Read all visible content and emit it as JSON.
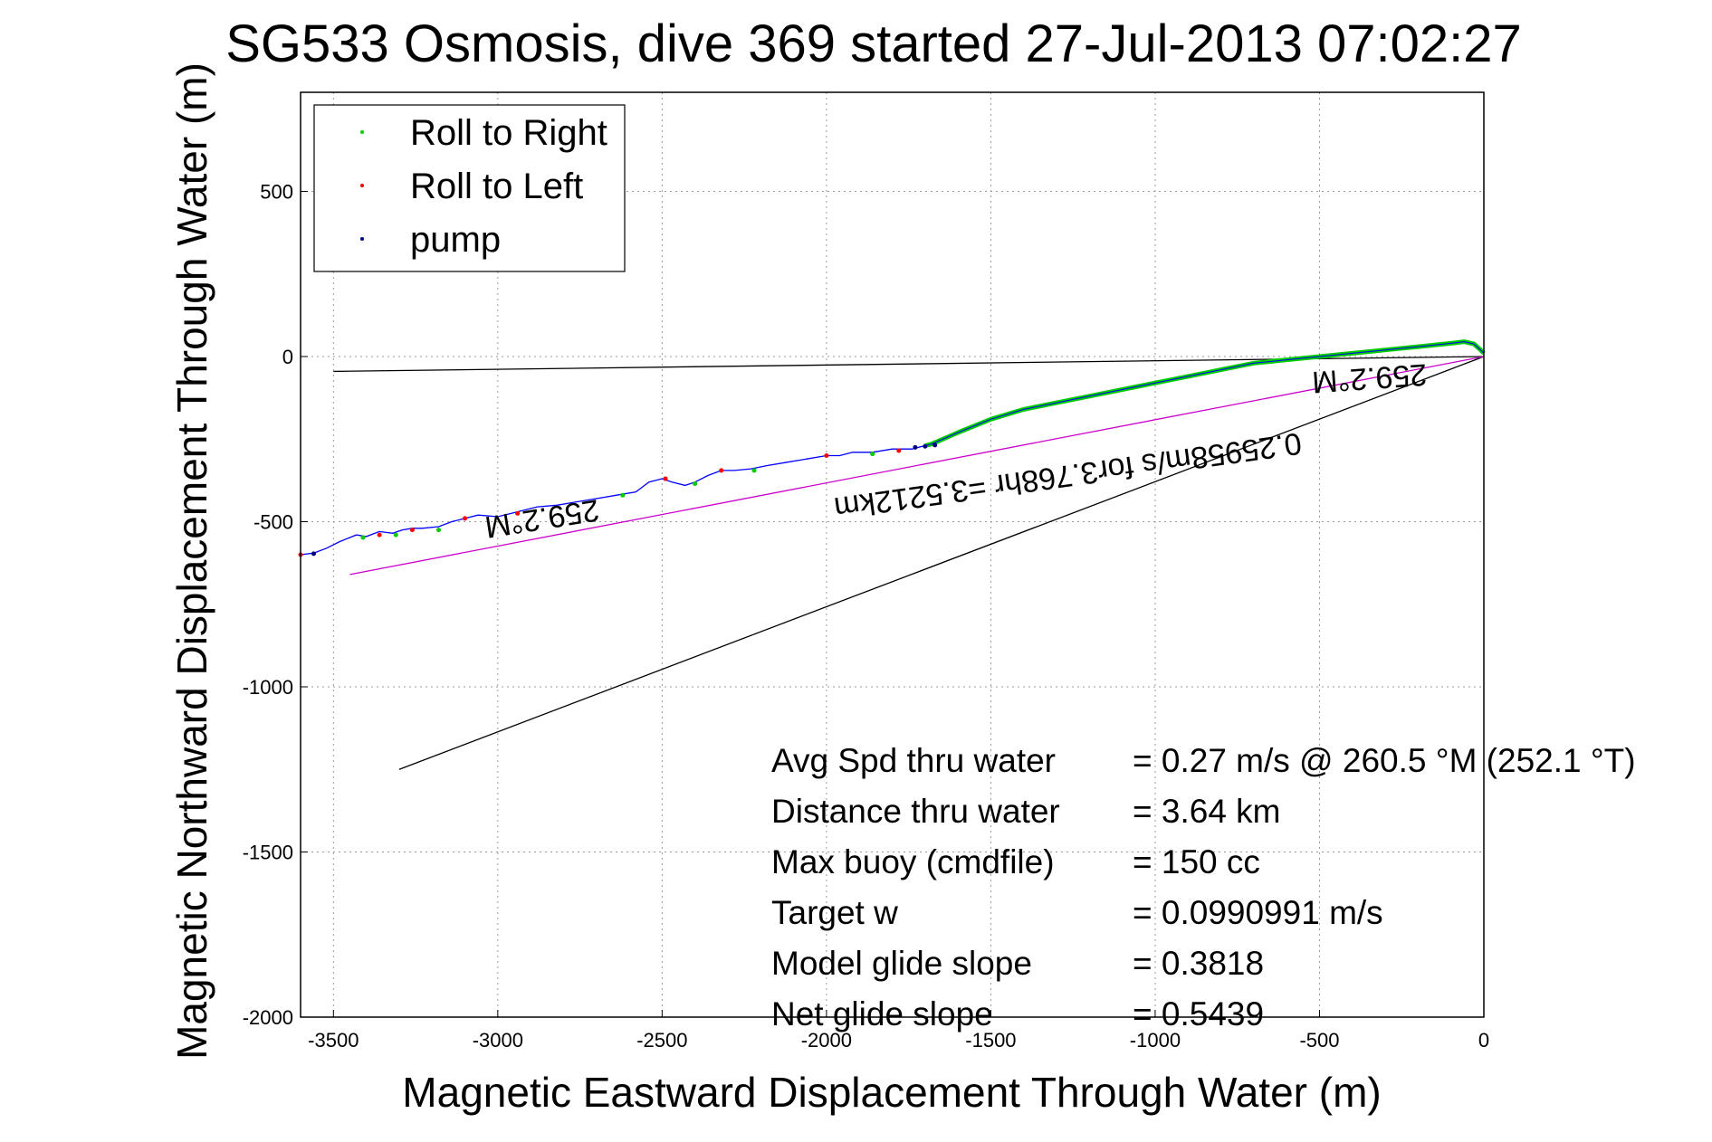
{
  "chart_data": {
    "type": "scatter",
    "title": "SG533 Osmosis, dive 369 started 27-Jul-2013 07:02:27",
    "xlabel": "Magnetic Eastward Displacement Through Water (m)",
    "ylabel": "Magnetic Northward Displacement Through Water (m)",
    "xlim": [
      -3600,
      0
    ],
    "ylim": [
      -2000,
      800
    ],
    "xticks": [
      -3500,
      -3000,
      -2500,
      -2000,
      -1500,
      -1000,
      -500,
      0
    ],
    "yticks": [
      500,
      0,
      -500,
      -1000,
      -1500,
      -2000
    ],
    "grid": true,
    "legend_position": "top-left",
    "legend": [
      {
        "label": "Roll to Right",
        "color": "#00cc00"
      },
      {
        "label": "Roll to Left",
        "color": "#ff0000"
      },
      {
        "label": "pump",
        "color": "#000080"
      }
    ],
    "track": {
      "color": "#0000ff",
      "x": [
        -3600,
        -3560,
        -3520,
        -3480,
        -3430,
        -3400,
        -3360,
        -3320,
        -3290,
        -3260,
        -3230,
        -3180,
        -3140,
        -3100,
        -3060,
        -3000,
        -2940,
        -2880,
        -2820,
        -2760,
        -2700,
        -2640,
        -2580,
        -2540,
        -2500,
        -2470,
        -2430,
        -2400,
        -2360,
        -2320,
        -2280,
        -2230,
        -2180,
        -2120,
        -2060,
        -2000,
        -1960,
        -1920,
        -1860,
        -1800,
        -1740,
        -1700,
        -1680,
        -1600,
        -1500,
        -1400,
        -1300,
        -1200,
        -1100,
        -1000,
        -900,
        -800,
        -700,
        -600,
        -500,
        -400,
        -300,
        -200,
        -100,
        -60,
        -30,
        -10,
        0
      ],
      "y": [
        -600,
        -595,
        -580,
        -560,
        -540,
        -545,
        -530,
        -535,
        -525,
        -520,
        -520,
        -515,
        -500,
        -490,
        -480,
        -485,
        -470,
        -455,
        -450,
        -440,
        -430,
        -420,
        -410,
        -380,
        -370,
        -380,
        -390,
        -380,
        -360,
        -345,
        -345,
        -340,
        -330,
        -320,
        -310,
        -300,
        -300,
        -290,
        -290,
        -280,
        -280,
        -270,
        -265,
        -230,
        -190,
        -160,
        -140,
        -120,
        -100,
        -80,
        -60,
        -40,
        -20,
        -10,
        0,
        10,
        20,
        30,
        40,
        45,
        38,
        20,
        10
      ]
    },
    "green_segment_start_x": -1700,
    "roll_left_points": [
      {
        "x": -3600,
        "y": -600
      },
      {
        "x": -3360,
        "y": -540
      },
      {
        "x": -3260,
        "y": -525
      },
      {
        "x": -3100,
        "y": -490
      },
      {
        "x": -2940,
        "y": -475
      },
      {
        "x": -2490,
        "y": -370
      },
      {
        "x": -2320,
        "y": -345
      },
      {
        "x": -2000,
        "y": -300
      },
      {
        "x": -1780,
        "y": -285
      }
    ],
    "roll_right_points": [
      {
        "x": -3410,
        "y": -548
      },
      {
        "x": -3310,
        "y": -540
      },
      {
        "x": -3180,
        "y": -525
      },
      {
        "x": -2620,
        "y": -420
      },
      {
        "x": -2400,
        "y": -385
      },
      {
        "x": -2220,
        "y": -345
      },
      {
        "x": -1860,
        "y": -295
      }
    ],
    "pump_points": [
      {
        "x": -3560,
        "y": -597
      },
      {
        "x": -1730,
        "y": -275
      },
      {
        "x": -1700,
        "y": -272
      },
      {
        "x": -1670,
        "y": -268
      }
    ],
    "reference_lines": [
      {
        "color": "#000000",
        "x": [
          -3500,
          0
        ],
        "y": [
          -45,
          0
        ]
      },
      {
        "color": "#000000",
        "x": [
          -3300,
          0
        ],
        "y": [
          -1250,
          0
        ]
      },
      {
        "color": "#cc00cc",
        "x": [
          -3450,
          0
        ],
        "y": [
          -660,
          0
        ]
      }
    ],
    "line_labels": [
      {
        "text": "259.2°M",
        "x": -350,
        "y": -35,
        "angle": 176
      },
      {
        "text": "0.25958m/s for3.768hr =3.5212km",
        "x": -1270,
        "y": -330,
        "angle": 172
      },
      {
        "text": "259.2°M",
        "x": -2870,
        "y": -460,
        "angle": 171
      }
    ],
    "stats": [
      {
        "label": "Avg Spd thru water",
        "value": "=  0.27 m/s @ 260.5 °M (252.1 °T)"
      },
      {
        "label": "Distance thru water",
        "value": "=  3.64 km"
      },
      {
        "label": "Max buoy (cmdfile)",
        "value": "= 150 cc"
      },
      {
        "label": "Target w",
        "value": "= 0.0990991 m/s"
      },
      {
        "label": "Model glide slope",
        "value": "= 0.3818"
      },
      {
        "label": "Net glide slope",
        "value": "= 0.5439"
      }
    ]
  }
}
